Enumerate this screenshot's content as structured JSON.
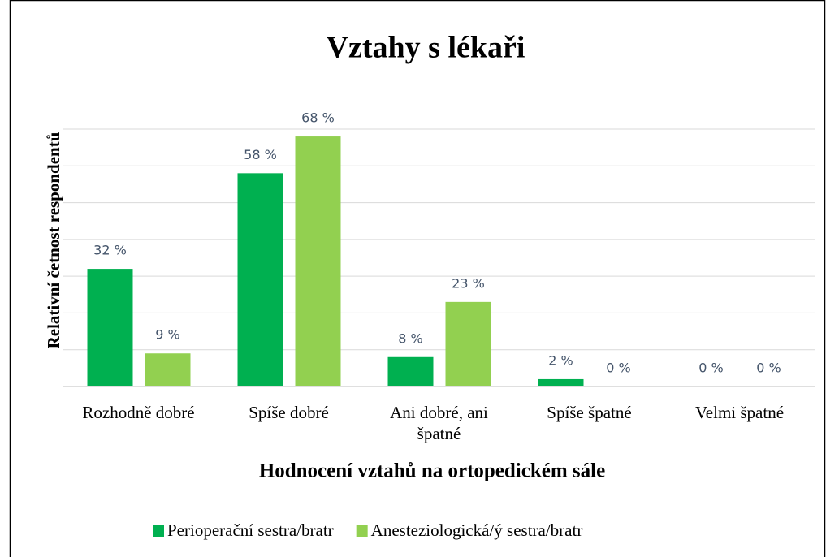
{
  "chart_data": {
    "type": "bar",
    "title": "Vztahy s lékaři",
    "x_label": "Hodnocení vztahů na ortopedickém sále",
    "y_label": "Relativní četnost respondentů",
    "categories": [
      "Rozhodně dobré",
      "Spíše dobré",
      "Ani dobré, ani špatné",
      "Spíše špatné",
      "Velmi špatné"
    ],
    "series": [
      {
        "name": "Perioperační sestra/bratr",
        "color": "#00b050",
        "values": [
          32,
          58,
          8,
          2,
          0
        ],
        "value_labels": [
          "32 %",
          "58 %",
          "8 %",
          "2 %",
          "0 %"
        ]
      },
      {
        "name": "Anesteziologická/ý sestra/bratr",
        "color": "#92d050",
        "values": [
          9,
          68,
          23,
          0,
          0
        ],
        "value_labels": [
          "9 %",
          "68 %",
          "23 %",
          "0 %",
          "0 %"
        ]
      }
    ],
    "ylim": [
      0,
      70
    ],
    "yticks": [
      0,
      10,
      20,
      30,
      40,
      50,
      60,
      70
    ],
    "ytick_labels_shown": false,
    "grid": true,
    "legend": "bottom"
  }
}
